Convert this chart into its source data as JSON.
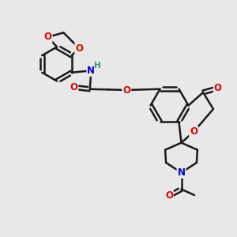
{
  "background_color": "#e8e8e8",
  "bond_color": "#1a1a1a",
  "bond_width": 1.8,
  "atom_colors": {
    "O": "#dd0000",
    "N": "#0000cc",
    "H": "#3a8888",
    "C": "#1a1a1a"
  },
  "font_size_atom": 8.5,
  "font_size_H": 7.5,
  "figsize": [
    3.0,
    3.0
  ],
  "dpi": 100
}
